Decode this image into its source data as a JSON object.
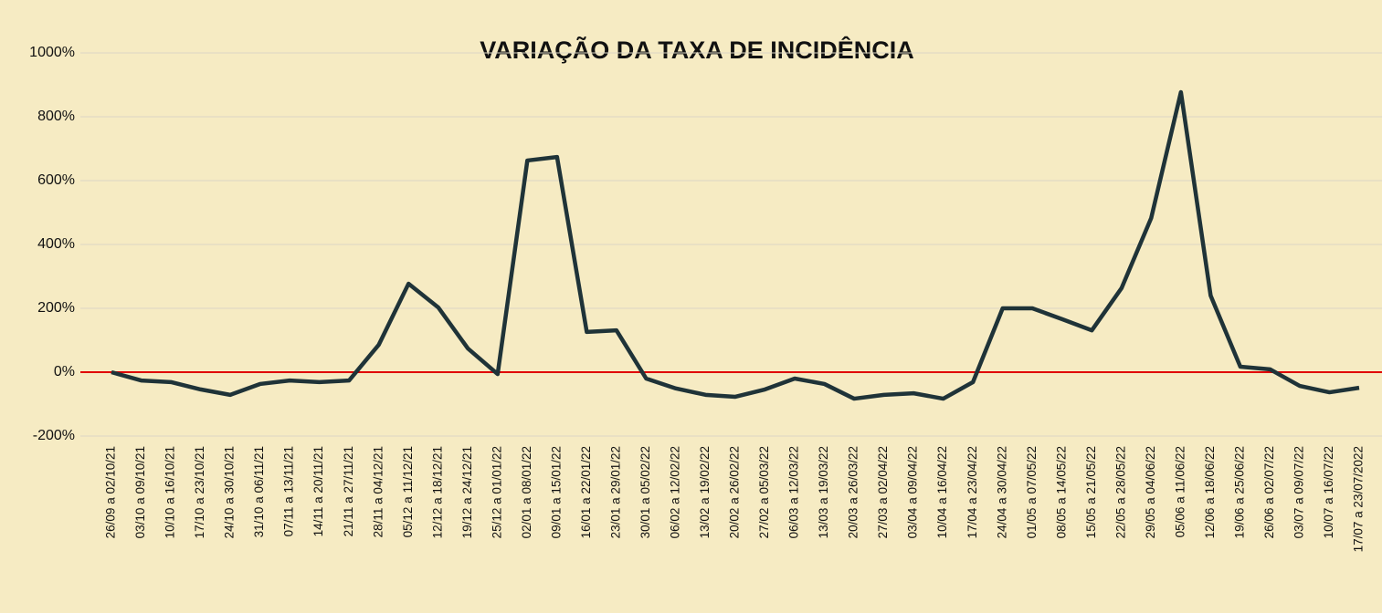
{
  "chart_data": {
    "type": "line",
    "title": "VARIAÇÃO DA TAXA DE INCIDÊNCIA",
    "categories": [
      "26/09 a 02/10/21",
      "03/10 a 09/10/21",
      "10/10 a 16/10/21",
      "17/10 a 23/10/21",
      "24/10 a 30/10/21",
      "31/10 a 06/11/21",
      "07/11 a 13/11/21",
      "14/11 a 20/11/21",
      "21/11 a 27/11/21",
      "28/11 a 04/12/21",
      "05/12 a 11/12/21",
      "12/12 a 18/12/21",
      "19/12 a 24/12/21",
      "25/12 a 01/01/22",
      "02/01 a 08/01/22",
      "09/01 a 15/01/22",
      "16/01 a 22/01/22",
      "23/01 a 29/01/22",
      "30/01 a 05/02/22",
      "06/02 a 12/02/22",
      "13/02 a 19/02/22",
      "20/02 a 26/02/22",
      "27/02 a 05/03/22",
      "06/03 a 12/03/22",
      "13/03 a 19/03/22",
      "20/03 a 26/03/22",
      "27/03 a 02/04/22",
      "03/04 a 09/04/22",
      "10/04 a 16/04/22",
      "17/04 a 23/04/22",
      "24/04 a 30/04/22",
      "01/05 a 07/05/22",
      "08/05 a 14/05/22",
      "15/05 a 21/05/22",
      "22/05 a 28/05/22",
      "29/05 a 04/06/22",
      "05/06 a 11/06/22",
      "12/06 a 18/06/22",
      "19/06 a 25/06/22",
      "26/06 a 02/07/22",
      "03/07 a 09/07/22",
      "10/07 a 16/07/22",
      "17/07 a 23/07/2022"
    ],
    "values": [
      0,
      -26,
      -31,
      -54,
      -71,
      -37,
      -26,
      -31,
      -26,
      86,
      277,
      203,
      74,
      -6,
      663,
      674,
      126,
      131,
      -20,
      -51,
      -71,
      -77,
      -54,
      -20,
      -37,
      -83,
      -71,
      -66,
      -83,
      -31,
      200,
      200,
      166,
      131,
      263,
      483,
      877,
      240,
      17,
      9,
      -43,
      -63,
      -49
    ],
    "color": "#1f3338",
    "zero_line_color": "#e00000",
    "ylim": [
      -200,
      1000
    ],
    "yticks": [
      {
        "value": -200,
        "label": "-200%"
      },
      {
        "value": 0,
        "label": "0%"
      },
      {
        "value": 200,
        "label": "200%"
      },
      {
        "value": 400,
        "label": "400%"
      },
      {
        "value": 600,
        "label": "600%"
      },
      {
        "value": 800,
        "label": "800%"
      },
      {
        "value": 1000,
        "label": "1000%"
      }
    ],
    "grid": true
  }
}
